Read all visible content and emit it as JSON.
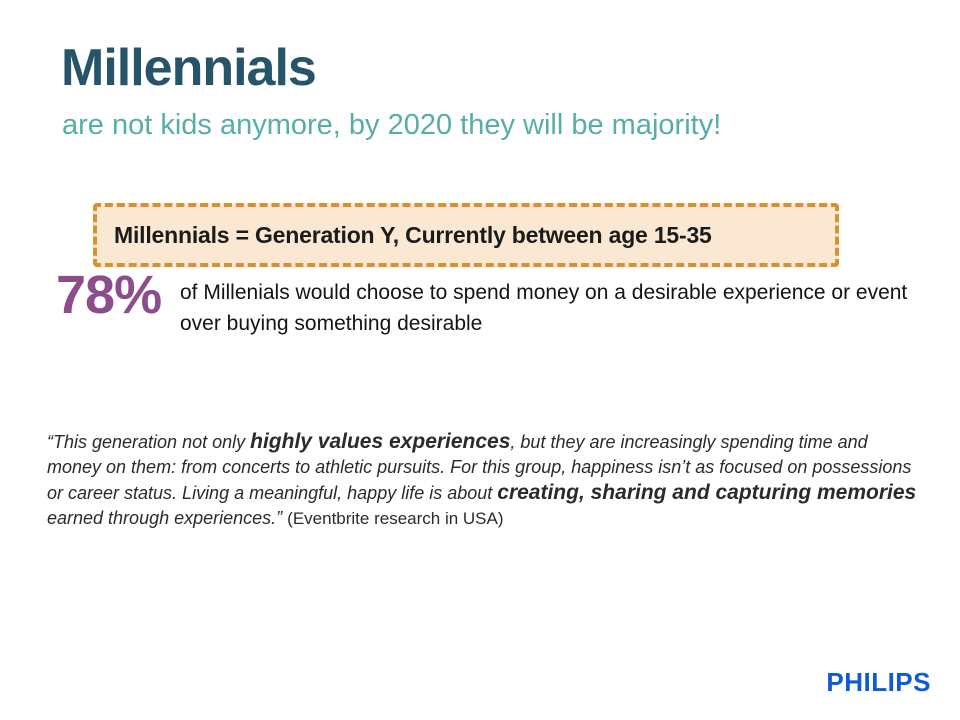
{
  "slide": {
    "title": "Millennials",
    "subtitle": "are not kids anymore, by 2020 they will be majority!",
    "definition_box": {
      "text": "Millennials = Generation Y, Currently between age 15-35"
    },
    "stat": {
      "value": "78%",
      "description": "of Millenials would choose to spend money on a desirable experience or event over buying something desirable"
    },
    "quote": {
      "seg1": "“This generation not only ",
      "seg2_bold": "highly values experiences",
      "seg3": ", but they are increasingly spending time and money on them: from concerts to athletic pursuits. For this group, happiness isn’t as focused on possessions or career status. Living a meaningful, happy life is about ",
      "seg4_bold": "creating, sharing and capturing memories",
      "seg5": " earned through experiences.” ",
      "attribution": "(Eventbrite research in USA)"
    },
    "footer": {
      "brand": "PHILIPS"
    }
  },
  "colors": {
    "title_teal": "#265468",
    "subtitle_teal": "#57AEA9",
    "box_border_orange": "#D9912E",
    "box_fill_cream": "#FAE8D2",
    "stat_purple": "#8C4D8C",
    "body_text": "#141414",
    "quote_text": "#2B2B2B",
    "philips_blue": "#0F5BD1"
  }
}
